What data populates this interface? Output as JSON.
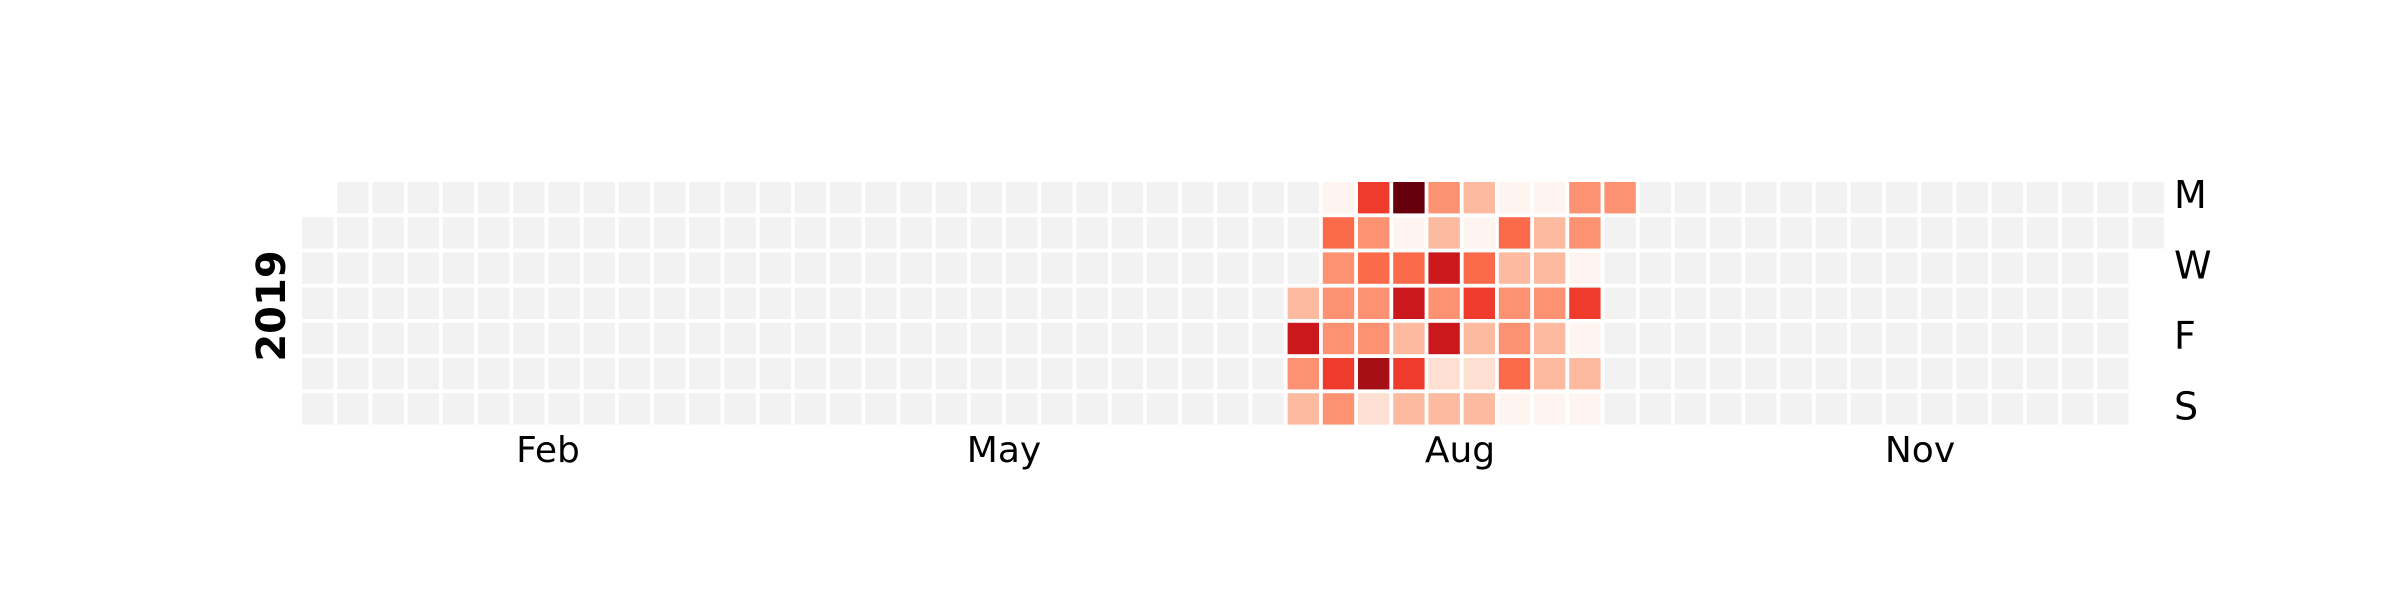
{
  "chart_data": {
    "type": "heatmap",
    "title": "",
    "year_label": "2019",
    "month_labels": [
      "Feb",
      "May",
      "Aug",
      "Nov"
    ],
    "weekday_labels": [
      "M",
      "W",
      "F",
      "S"
    ],
    "empty_color": "#f2f2f2",
    "colorscale": [
      "#fff5f0",
      "#fee0d2",
      "#fcbba1",
      "#fc9272",
      "#fb6a4a",
      "#ef3b2c",
      "#cb181d",
      "#a50f15",
      "#67000d"
    ],
    "value_range": [
      0,
      8
    ],
    "week_start": "Monday",
    "grid": false,
    "legend": "none",
    "weeks": 53,
    "data_weeks": [
      {
        "week": 28,
        "values": [
          null,
          null,
          null,
          2,
          6,
          3,
          2
        ]
      },
      {
        "week": 29,
        "values": [
          0,
          4,
          3,
          3,
          3,
          5,
          3
        ]
      },
      {
        "week": 30,
        "values": [
          5,
          3,
          4,
          3,
          3,
          7,
          1
        ]
      },
      {
        "week": 31,
        "values": [
          8,
          0,
          4,
          6,
          2,
          5,
          2
        ]
      },
      {
        "week": 32,
        "values": [
          3,
          2,
          6,
          3,
          6,
          1,
          2
        ]
      },
      {
        "week": 33,
        "values": [
          2,
          0,
          4,
          5,
          2,
          1,
          2
        ]
      },
      {
        "week": 34,
        "values": [
          0,
          4,
          2,
          3,
          3,
          4,
          0
        ]
      },
      {
        "week": 35,
        "values": [
          0,
          2,
          2,
          3,
          2,
          2,
          0
        ]
      },
      {
        "week": 36,
        "values": [
          3,
          3,
          0,
          5,
          0,
          2,
          0
        ]
      },
      {
        "week": 37,
        "values": [
          3,
          null,
          null,
          null,
          null,
          null,
          null
        ]
      }
    ]
  }
}
